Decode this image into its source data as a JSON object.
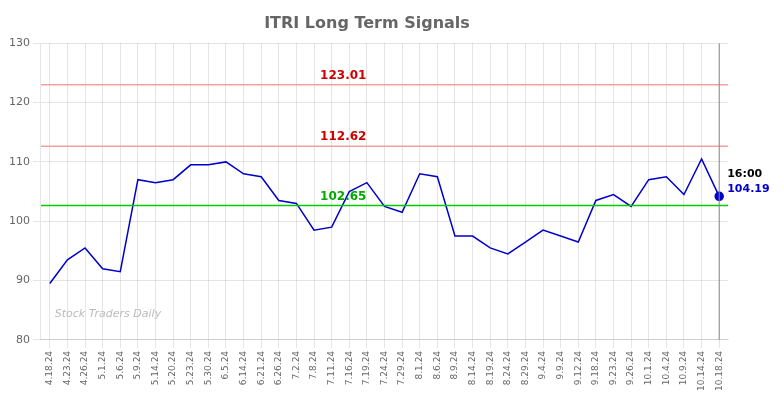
{
  "chart_data": {
    "type": "line",
    "title": "ITRI Long Term Signals",
    "categories": [
      "4.18.24",
      "4.23.24",
      "4.26.24",
      "5.1.24",
      "5.6.24",
      "5.9.24",
      "5.14.24",
      "5.20.24",
      "5.23.24",
      "5.30.24",
      "6.5.24",
      "6.14.24",
      "6.21.24",
      "6.26.24",
      "7.2.24",
      "7.8.24",
      "7.11.24",
      "7.16.24",
      "7.19.24",
      "7.24.24",
      "7.29.24",
      "8.1.24",
      "8.6.24",
      "8.9.24",
      "8.14.24",
      "8.19.24",
      "8.24.24",
      "8.29.24",
      "9.4.24",
      "9.9.24",
      "9.12.24",
      "9.18.24",
      "9.23.24",
      "9.26.24",
      "10.1.24",
      "10.4.24",
      "10.9.24",
      "10.14.24",
      "10.18.24"
    ],
    "values": [
      89.5,
      93.5,
      95.5,
      92.0,
      91.5,
      107.0,
      106.5,
      107.0,
      109.5,
      109.5,
      110.0,
      108.0,
      107.5,
      103.5,
      103.0,
      98.5,
      99.0,
      105.0,
      106.5,
      102.5,
      101.5,
      108.0,
      107.5,
      97.5,
      97.5,
      95.5,
      94.5,
      96.5,
      98.5,
      97.5,
      96.5,
      103.5,
      104.5,
      102.5,
      107.0,
      107.5,
      104.5,
      110.5,
      104.19
    ],
    "color": "#0000cc",
    "ylim": [
      80,
      130
    ],
    "yticks": [
      80,
      90,
      100,
      110,
      120,
      130
    ],
    "grid": true,
    "hlines": [
      {
        "value": 123.01,
        "color": "#f4a0a0",
        "label_color": "#cc0000"
      },
      {
        "value": 112.62,
        "color": "#f4a0a0",
        "label_color": "#cc0000"
      },
      {
        "value": 102.65,
        "color": "#00cc00",
        "label_color": "#00aa00"
      }
    ],
    "vline": {
      "x": "10.18.24",
      "color": "#888888"
    },
    "last_point": {
      "label": "16:00",
      "value": 104.19,
      "color": "#0000cc"
    },
    "watermark": {
      "text": "Stock Traders Daily",
      "color": "#bbbbbb"
    }
  }
}
